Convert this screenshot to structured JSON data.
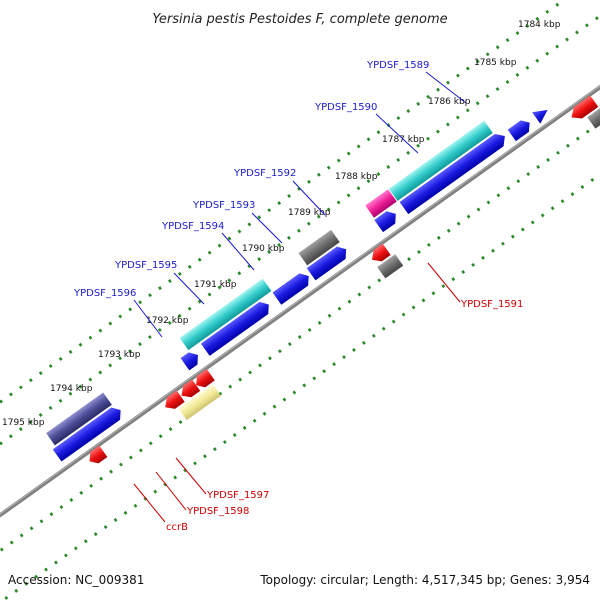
{
  "title": "Yersinia pestis Pestoides F, complete genome",
  "footer": {
    "accession": "Accession: NC_009381",
    "topology": "Topology: circular; Length: 4,517,345 bp; Genes: 3,954"
  },
  "colors": {
    "forward_label": "#1a1acc",
    "reverse_label": "#cc0000",
    "backbone": "#808080",
    "tick": "#2a8a2a"
  },
  "scale_labels": [
    "1784 kbp",
    "1785 kbp",
    "1786 kbp",
    "1787 kbp",
    "1788 kbp",
    "1789 kbp",
    "1790 kbp",
    "1791 kbp",
    "1792 kbp",
    "1793 kbp",
    "1794 kbp",
    "1795 kbp"
  ],
  "gene_labels": {
    "forward": [
      "YPDSF_1589",
      "YPDSF_1590",
      "YPDSF_1592",
      "YPDSF_1593",
      "YPDSF_1594",
      "YPDSF_1595",
      "YPDSF_1596"
    ],
    "reverse": [
      "YPDSF_1591",
      "YPDSF_1597",
      "YPDSF_1598",
      "ccrB"
    ]
  },
  "feature_types": [
    "cds-forward-blue",
    "cds-forward-cyan",
    "cds-forward-magenta",
    "cds-forward-gray",
    "cds-forward-slate",
    "cds-reverse-red",
    "cds-reverse-yellow",
    "cds-reverse-gray"
  ]
}
